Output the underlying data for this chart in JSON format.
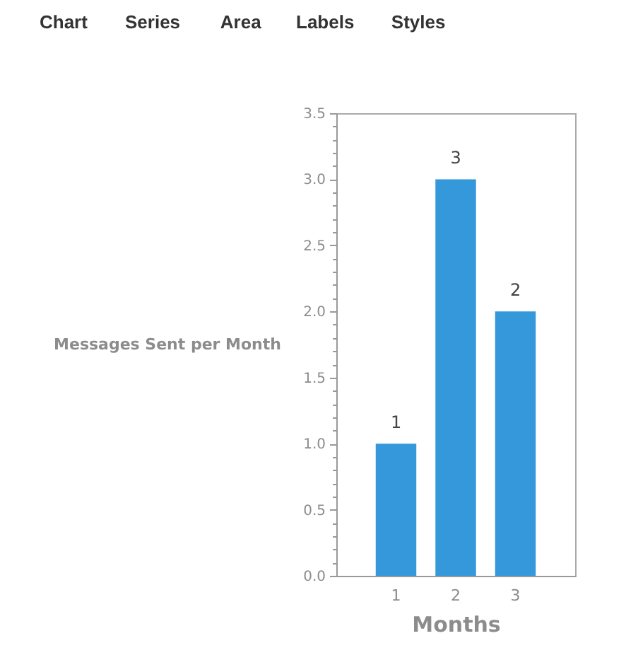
{
  "chart_data": {
    "type": "bar",
    "xlabel": "Months",
    "ylabel": "Messages Sent per Month",
    "categories": [
      "1",
      "2",
      "3"
    ],
    "values": [
      1,
      3,
      2
    ],
    "color": "#3498db",
    "data_labels": true,
    "ylim": [
      0,
      3.5
    ],
    "yticks": [
      {
        "value": 0,
        "label": "0.0"
      },
      {
        "value": 0.1,
        "label": null
      },
      {
        "value": 0.2,
        "label": null
      },
      {
        "value": 0.3,
        "label": null
      },
      {
        "value": 0.4,
        "label": null
      },
      0.5,
      {
        "value": 0.6,
        "label": null
      },
      {
        "value": 0.7,
        "label": null
      },
      {
        "value": 0.8,
        "label": null
      },
      {
        "value": 0.9,
        "label": null
      },
      {
        "value": 1,
        "label": "1.0"
      },
      {
        "value": 1.1,
        "label": null
      },
      {
        "value": 1.2,
        "label": null
      },
      {
        "value": 1.3,
        "label": null
      },
      {
        "value": 1.4,
        "label": null
      },
      1.5,
      {
        "value": 1.6,
        "label": null
      },
      {
        "value": 1.7,
        "label": null
      },
      {
        "value": 1.8,
        "label": null
      },
      {
        "value": 1.9,
        "label": null
      },
      {
        "value": 2,
        "label": "2.0"
      },
      {
        "value": 2.1,
        "label": null
      },
      {
        "value": 2.2,
        "label": null
      },
      {
        "value": 2.3,
        "label": null
      },
      {
        "value": 2.4,
        "label": null
      },
      2.5,
      {
        "value": 2.6,
        "label": null
      },
      {
        "value": 2.7,
        "label": null
      },
      {
        "value": 2.8,
        "label": null
      },
      {
        "value": 2.9,
        "label": null
      },
      {
        "value": 3,
        "label": "3.0"
      },
      {
        "value": 3.1,
        "label": null
      },
      {
        "value": 3.2,
        "label": null
      },
      {
        "value": 3.3,
        "label": null
      },
      {
        "value": 3.4,
        "label": null
      },
      3.5
    ],
    "annotations": [
      "Chart",
      "Series",
      "Area",
      "Labels",
      "Styles"
    ]
  }
}
